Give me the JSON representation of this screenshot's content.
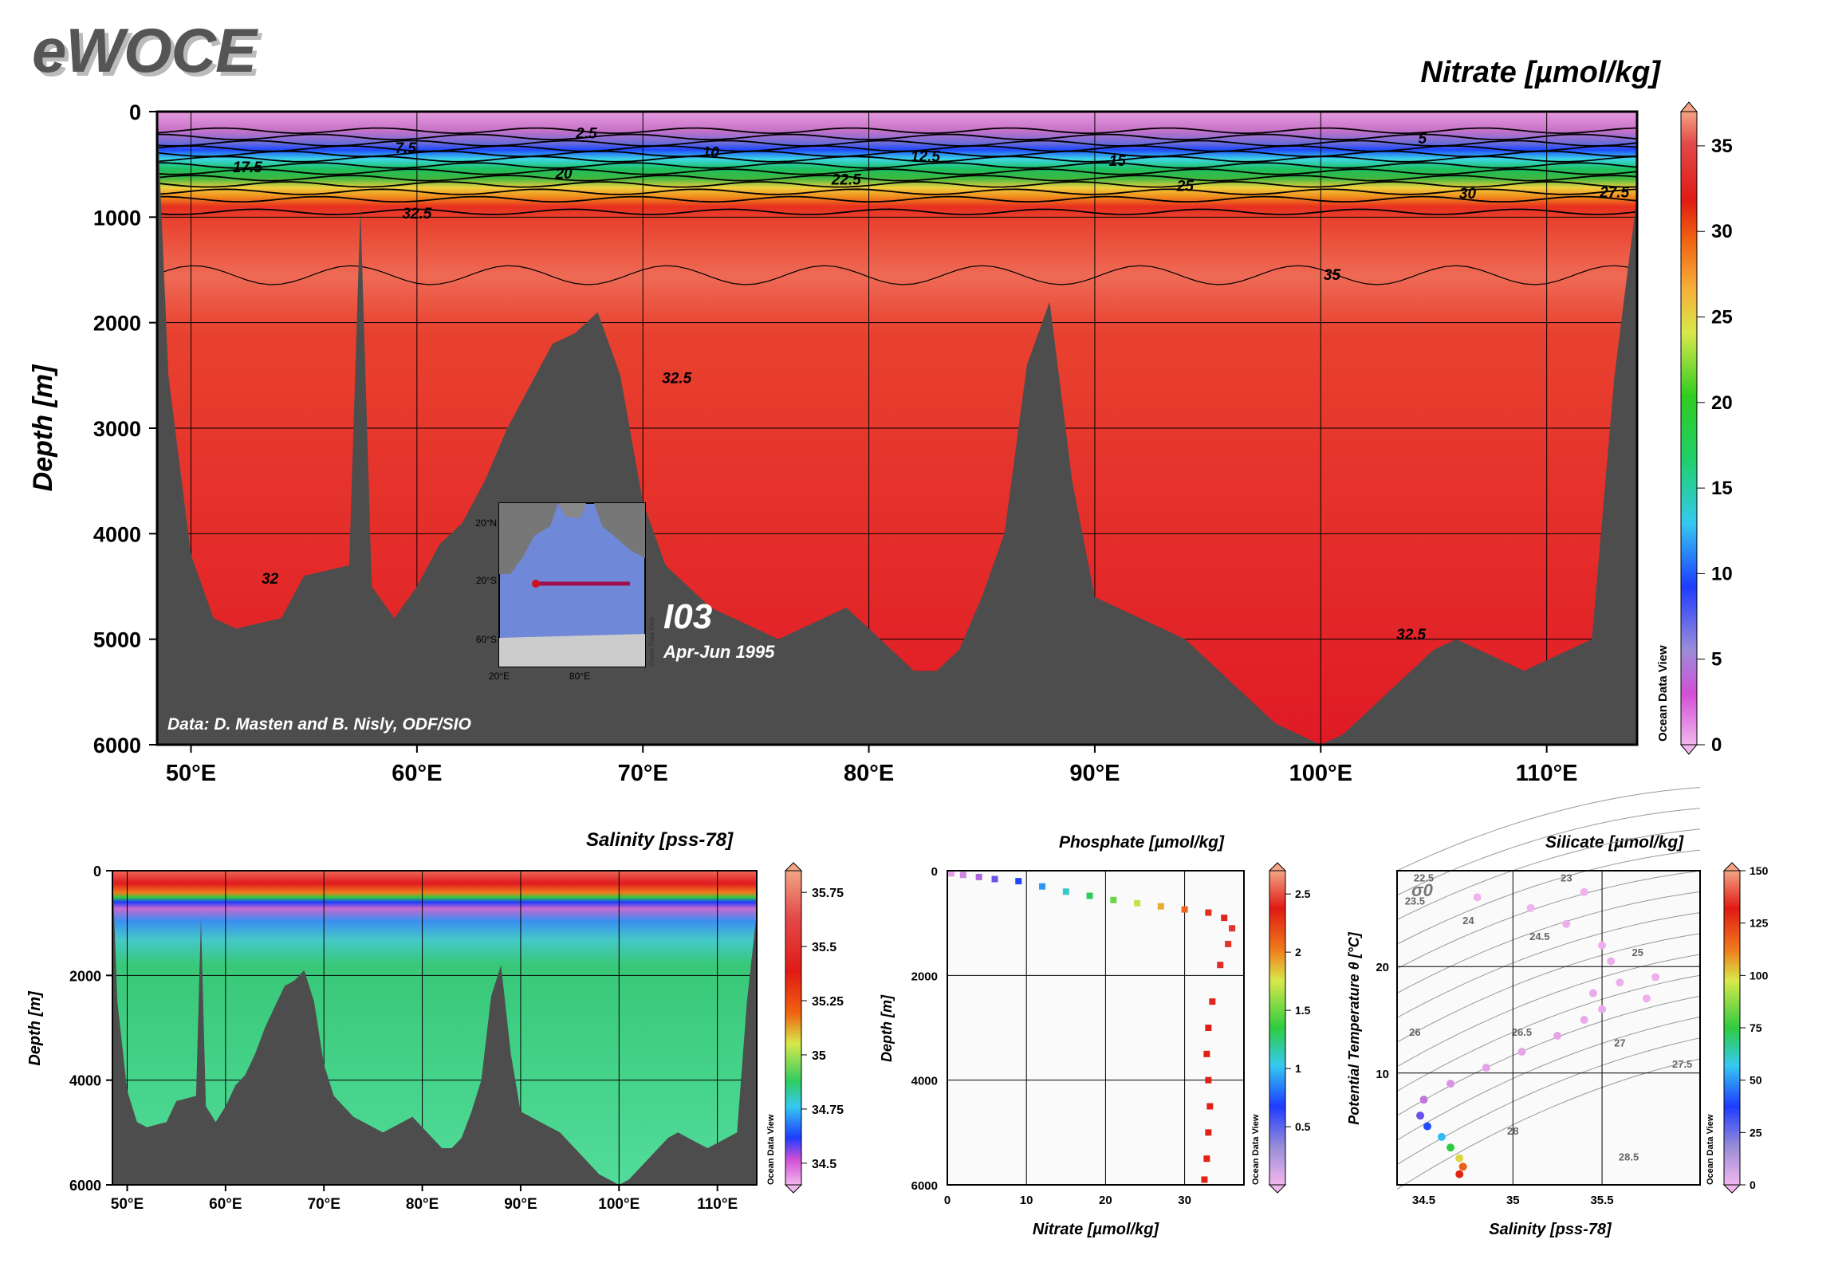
{
  "logo": "eWOCE",
  "colors": {
    "land": "#4d4d4d",
    "water_deep": "#e01a25",
    "background": "#ffffff"
  },
  "main_section": {
    "title": "Nitrate [µmol/kg]",
    "ylabel": "Depth [m]",
    "y_ticks": [
      "0",
      "1000",
      "2000",
      "3000",
      "4000",
      "5000",
      "6000"
    ],
    "x_ticks": [
      "50°E",
      "60°E",
      "70°E",
      "80°E",
      "90°E",
      "100°E",
      "110°E"
    ],
    "contour_labels": [
      "2.5",
      "5",
      "7.5",
      "10",
      "12.5",
      "15",
      "17.5",
      "20",
      "22.5",
      "25",
      "27.5",
      "30",
      "32.5",
      "35",
      "32.5",
      "32.5",
      "32"
    ],
    "cruise_name": "I03",
    "cruise_date": "Apr-Jun 1995",
    "credit": "Data: D. Masten and B. Nisly, ODF/SIO",
    "inset_lat_ticks": [
      "20°N",
      "20°S",
      "60°S"
    ],
    "inset_lon_ticks": [
      "20°E",
      "80°E"
    ],
    "inset_watermark": "Ocean Data View",
    "colorbar_ticks": [
      "35",
      "30",
      "25",
      "20",
      "15",
      "10",
      "5",
      "0"
    ],
    "watermark": "Ocean Data View"
  },
  "salinity_section": {
    "title": "Salinity [pss-78]",
    "ylabel": "Depth [m]",
    "y_ticks": [
      "0",
      "2000",
      "4000",
      "6000"
    ],
    "x_ticks": [
      "50°E",
      "60°E",
      "70°E",
      "80°E",
      "90°E",
      "100°E",
      "110°E"
    ],
    "colorbar_ticks": [
      "35.75",
      "35.5",
      "35.25",
      "35",
      "34.75",
      "34.5"
    ],
    "watermark": "Ocean Data View"
  },
  "phosphate_plot": {
    "title": "Phosphate [µmol/kg]",
    "xlabel": "Nitrate [µmol/kg]",
    "ylabel": "Depth [m]",
    "x_ticks": [
      "0",
      "10",
      "20",
      "30"
    ],
    "y_ticks": [
      "0",
      "2000",
      "4000",
      "6000"
    ],
    "colorbar_ticks": [
      "2.5",
      "2",
      "1.5",
      "1",
      "0.5"
    ],
    "watermark": "Ocean Data View"
  },
  "silicate_plot": {
    "title": "Silicate [µmol/kg]",
    "xlabel": "Salinity [pss-78]",
    "ylabel": "Potential Temperature θ [°C]",
    "x_ticks": [
      "34.5",
      "35",
      "35.5"
    ],
    "y_ticks": [
      "20",
      "10"
    ],
    "sigma_label": "σ0",
    "isopycnal_labels": [
      "22.5",
      "23",
      "23.5",
      "24",
      "24.5",
      "25",
      "26",
      "26.5",
      "27",
      "27.5",
      "28",
      "28.5"
    ],
    "colorbar_ticks": [
      "150",
      "125",
      "100",
      "75",
      "50",
      "25",
      "0"
    ],
    "watermark": "Ocean Data View"
  },
  "chart_data": [
    {
      "type": "heatmap",
      "title": "Nitrate [µmol/kg]",
      "ylabel": "Depth [m]",
      "xlim": [
        48.5,
        114
      ],
      "ylim": [
        6000,
        0
      ],
      "colorbar_range": [
        0,
        37
      ],
      "bottom_depth_profile": {
        "lon": [
          48.5,
          49,
          50,
          51,
          52,
          53,
          54,
          55,
          56,
          57,
          57.5,
          58,
          59,
          60,
          61,
          62,
          63,
          64,
          65,
          66,
          67,
          68,
          69,
          70,
          71,
          72,
          73,
          74,
          75,
          76,
          77,
          78,
          79,
          80,
          81,
          82,
          83,
          84,
          85,
          86,
          87,
          88,
          89,
          90,
          91,
          92,
          93,
          94,
          95,
          96,
          97,
          98,
          99,
          100,
          101,
          102,
          103,
          104,
          105,
          106,
          107,
          108,
          109,
          110,
          111,
          112,
          113,
          114
        ],
        "depth": [
          0,
          2500,
          4200,
          4800,
          4900,
          4850,
          4800,
          4400,
          4350,
          4300,
          900,
          4500,
          4800,
          4500,
          4100,
          3900,
          3500,
          3000,
          2600,
          2200,
          2100,
          1900,
          2500,
          3700,
          4300,
          4500,
          4700,
          4800,
          4900,
          5000,
          4900,
          4800,
          4700,
          4900,
          5100,
          5300,
          5300,
          5100,
          4600,
          4000,
          2400,
          1800,
          3500,
          4600,
          4700,
          4800,
          4900,
          5000,
          5200,
          5400,
          5600,
          5800,
          5900,
          6000,
          5900,
          5700,
          5500,
          5300,
          5100,
          5000,
          5100,
          5200,
          5300,
          5200,
          5100,
          5000,
          2500,
          800
        ]
      },
      "contours": [
        {
          "level": 2.5,
          "depth_m": 180
        },
        {
          "level": 5,
          "depth_m": 240
        },
        {
          "level": 7.5,
          "depth_m": 300
        },
        {
          "level": 10,
          "depth_m": 350
        },
        {
          "level": 12.5,
          "depth_m": 400
        },
        {
          "level": 15,
          "depth_m": 450
        },
        {
          "level": 17.5,
          "depth_m": 510
        },
        {
          "level": 20,
          "depth_m": 570
        },
        {
          "level": 22.5,
          "depth_m": 630
        },
        {
          "level": 25,
          "depth_m": 690
        },
        {
          "level": 27.5,
          "depth_m": 760
        },
        {
          "level": 30,
          "depth_m": 830
        },
        {
          "level": 32.5,
          "depth_m": 950
        },
        {
          "level": 35,
          "depth_m": 1550
        }
      ]
    },
    {
      "type": "heatmap",
      "title": "Salinity [pss-78]",
      "ylabel": "Depth [m]",
      "xlim": [
        48.5,
        114
      ],
      "ylim": [
        6000,
        0
      ],
      "colorbar_range": [
        34.4,
        35.85
      ],
      "layers": [
        {
          "depth_m": 0,
          "salinity": 35.6
        },
        {
          "depth_m": 300,
          "salinity": 35.3
        },
        {
          "depth_m": 500,
          "salinity": 34.9
        },
        {
          "depth_m": 700,
          "salinity": 34.55
        },
        {
          "depth_m": 1000,
          "salinity": 34.5
        },
        {
          "depth_m": 1500,
          "salinity": 34.7
        },
        {
          "depth_m": 3000,
          "salinity": 34.75
        },
        {
          "depth_m": 6000,
          "salinity": 34.72
        }
      ]
    },
    {
      "type": "scatter",
      "title": "Phosphate [µmol/kg]",
      "xlabel": "Nitrate [µmol/kg]",
      "ylabel": "Depth [m]",
      "xlim": [
        0,
        37.5
      ],
      "ylim": [
        6000,
        0
      ],
      "colorbar_range": [
        0,
        2.7
      ],
      "points": [
        {
          "x": 0.5,
          "y": 50,
          "c": 0.1
        },
        {
          "x": 2,
          "y": 80,
          "c": 0.2
        },
        {
          "x": 4,
          "y": 120,
          "c": 0.35
        },
        {
          "x": 6,
          "y": 160,
          "c": 0.5
        },
        {
          "x": 9,
          "y": 200,
          "c": 0.7
        },
        {
          "x": 12,
          "y": 300,
          "c": 0.9
        },
        {
          "x": 15,
          "y": 400,
          "c": 1.1
        },
        {
          "x": 18,
          "y": 480,
          "c": 1.3
        },
        {
          "x": 21,
          "y": 560,
          "c": 1.5
        },
        {
          "x": 24,
          "y": 620,
          "c": 1.7
        },
        {
          "x": 27,
          "y": 680,
          "c": 1.9
        },
        {
          "x": 30,
          "y": 740,
          "c": 2.1
        },
        {
          "x": 33,
          "y": 800,
          "c": 2.3
        },
        {
          "x": 35,
          "y": 900,
          "c": 2.45
        },
        {
          "x": 36,
          "y": 1100,
          "c": 2.55
        },
        {
          "x": 35.5,
          "y": 1400,
          "c": 2.55
        },
        {
          "x": 34.5,
          "y": 1800,
          "c": 2.5
        },
        {
          "x": 33.5,
          "y": 2500,
          "c": 2.45
        },
        {
          "x": 33,
          "y": 3000,
          "c": 2.4
        },
        {
          "x": 32.8,
          "y": 3500,
          "c": 2.35
        },
        {
          "x": 33,
          "y": 4000,
          "c": 2.35
        },
        {
          "x": 33.2,
          "y": 4500,
          "c": 2.35
        },
        {
          "x": 33,
          "y": 5000,
          "c": 2.35
        },
        {
          "x": 32.8,
          "y": 5500,
          "c": 2.35
        },
        {
          "x": 32.5,
          "y": 5900,
          "c": 2.35
        }
      ]
    },
    {
      "type": "scatter",
      "title": "Silicate [µmol/kg]",
      "xlabel": "Salinity [pss-78]",
      "ylabel": "Potential Temperature θ [°C]",
      "xlim": [
        34.35,
        36.05
      ],
      "ylim": [
        -0.5,
        29
      ],
      "colorbar_range": [
        0,
        150
      ],
      "points": [
        {
          "x": 34.7,
          "y": 0.5,
          "c": 130
        },
        {
          "x": 34.72,
          "y": 1.2,
          "c": 118
        },
        {
          "x": 34.7,
          "y": 2,
          "c": 100
        },
        {
          "x": 34.65,
          "y": 3,
          "c": 75
        },
        {
          "x": 34.6,
          "y": 4,
          "c": 55
        },
        {
          "x": 34.52,
          "y": 5,
          "c": 40
        },
        {
          "x": 34.48,
          "y": 6,
          "c": 28
        },
        {
          "x": 34.5,
          "y": 7.5,
          "c": 15
        },
        {
          "x": 34.65,
          "y": 9,
          "c": 8
        },
        {
          "x": 34.85,
          "y": 10.5,
          "c": 5
        },
        {
          "x": 35.05,
          "y": 12,
          "c": 4
        },
        {
          "x": 35.25,
          "y": 13.5,
          "c": 4
        },
        {
          "x": 35.4,
          "y": 15,
          "c": 3
        },
        {
          "x": 35.5,
          "y": 16,
          "c": 3
        },
        {
          "x": 35.45,
          "y": 17.5,
          "c": 3
        },
        {
          "x": 35.6,
          "y": 18.5,
          "c": 2
        },
        {
          "x": 35.8,
          "y": 19,
          "c": 2
        },
        {
          "x": 35.75,
          "y": 17,
          "c": 2
        },
        {
          "x": 35.55,
          "y": 20.5,
          "c": 2
        },
        {
          "x": 35.5,
          "y": 22,
          "c": 2
        },
        {
          "x": 35.3,
          "y": 24,
          "c": 2
        },
        {
          "x": 35.1,
          "y": 25.5,
          "c": 1
        },
        {
          "x": 34.8,
          "y": 26.5,
          "c": 1
        },
        {
          "x": 35.4,
          "y": 27,
          "c": 1
        }
      ]
    }
  ]
}
